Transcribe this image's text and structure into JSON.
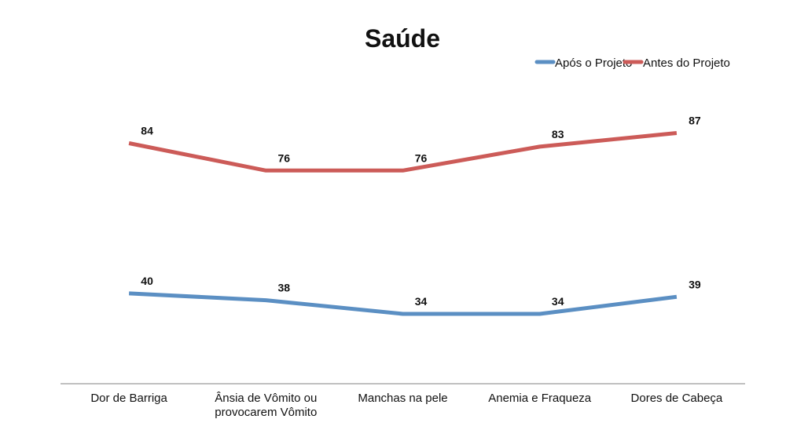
{
  "chart_data": {
    "type": "line",
    "title": "Saúde",
    "xlabel": "",
    "ylabel": "",
    "categories": [
      [
        "Dor de Barriga"
      ],
      [
        "Ânsia de Vômito ou",
        "provocarem Vômito"
      ],
      [
        "Manchas na pele"
      ],
      [
        "Anemia e Fraqueza"
      ],
      [
        "Dores de Cabeça"
      ]
    ],
    "series": [
      {
        "name": "Após o Projeto",
        "color": "#5b8fc3",
        "values": [
          40,
          38,
          34,
          34,
          39
        ]
      },
      {
        "name": "Antes do Projeto",
        "color": "#cc5b58",
        "values": [
          84,
          76,
          76,
          83,
          87
        ]
      }
    ],
    "legend_position": "top-right",
    "grid": false
  }
}
